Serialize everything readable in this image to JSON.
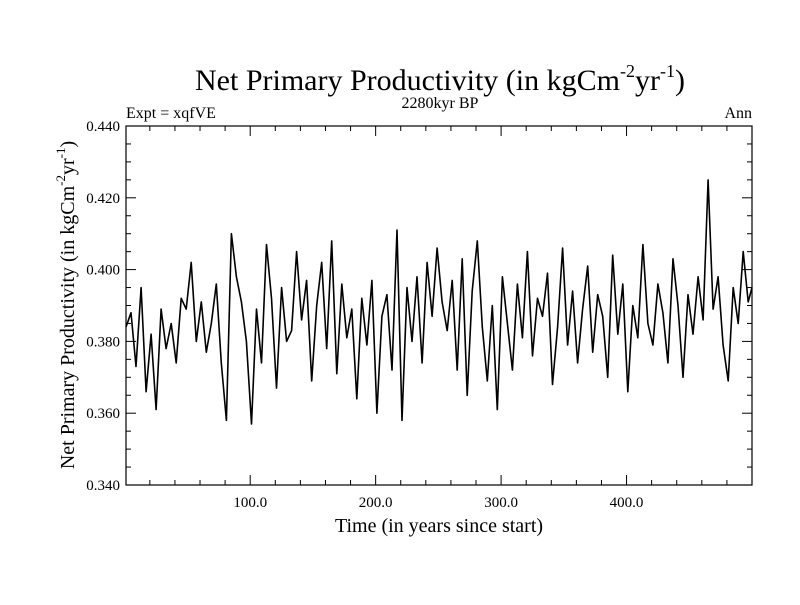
{
  "header": {
    "title_main": "Net Primary Productivity (in kgCm",
    "title_sup1": "-2",
    "title_mid": "yr",
    "title_sup2": "-1",
    "title_end": ")",
    "subtitle": "2280kyr BP",
    "left_label": "Expt = xqfVE",
    "right_label": "Ann"
  },
  "axes": {
    "xlabel": "Time (in years since start)",
    "ylabel_main": "Net Primary Productivity (in kgCm",
    "ylabel_sup1": "-2",
    "ylabel_mid": "yr",
    "ylabel_sup2": "-1",
    "ylabel_end": ")"
  },
  "chart_data": {
    "type": "line",
    "title": "Net Primary Productivity (in kgCm-2yr-1)",
    "xlabel": "Time (in years since start)",
    "ylabel": "Net Primary Productivity (in kgCm-2yr-1)",
    "xlim": [
      1,
      500
    ],
    "ylim": [
      0.34,
      0.44
    ],
    "xticks": [
      100,
      200,
      300,
      400
    ],
    "xtick_labels": [
      "100.0",
      "200.0",
      "300.0",
      "400.0"
    ],
    "yticks": [
      0.34,
      0.36,
      0.38,
      0.4,
      0.42,
      0.44
    ],
    "ytick_labels": [
      "0.340",
      "0.360",
      "0.380",
      "0.400",
      "0.420",
      "0.440"
    ],
    "grid": false,
    "line_color": "#000000",
    "series": [
      {
        "x": [
          1,
          5,
          9,
          13,
          17,
          21,
          25,
          29,
          33,
          37,
          41,
          45,
          49,
          53,
          57,
          61,
          65,
          69,
          73,
          77,
          81,
          85,
          89,
          93,
          97,
          101,
          105,
          109,
          113,
          117,
          121,
          125,
          129,
          133,
          137,
          141,
          145,
          149,
          153,
          157,
          161,
          165,
          169,
          173,
          177,
          181,
          185,
          189,
          193,
          197,
          201,
          205,
          209,
          213,
          217,
          221,
          225,
          229,
          233,
          237,
          241,
          245,
          249,
          253,
          257,
          261,
          265,
          269,
          273,
          277,
          281,
          285,
          289,
          293,
          297,
          301,
          305,
          309,
          313,
          317,
          321,
          325,
          329,
          333,
          337,
          341,
          345,
          349,
          353,
          357,
          361,
          365,
          369,
          373,
          377,
          381,
          385,
          389,
          393,
          397,
          401,
          405,
          409,
          413,
          417,
          421,
          425,
          429,
          433,
          437,
          441,
          445,
          449,
          453,
          457,
          461,
          465,
          469,
          473,
          477,
          481,
          485,
          489,
          493,
          497,
          500
        ],
        "y": [
          0.384,
          0.388,
          0.373,
          0.395,
          0.366,
          0.382,
          0.361,
          0.389,
          0.378,
          0.385,
          0.374,
          0.392,
          0.389,
          0.402,
          0.38,
          0.391,
          0.377,
          0.385,
          0.396,
          0.374,
          0.358,
          0.41,
          0.398,
          0.391,
          0.38,
          0.357,
          0.389,
          0.374,
          0.407,
          0.392,
          0.367,
          0.395,
          0.38,
          0.383,
          0.405,
          0.386,
          0.397,
          0.369,
          0.39,
          0.402,
          0.378,
          0.408,
          0.371,
          0.396,
          0.381,
          0.389,
          0.364,
          0.392,
          0.379,
          0.397,
          0.36,
          0.387,
          0.393,
          0.372,
          0.411,
          0.358,
          0.395,
          0.38,
          0.398,
          0.374,
          0.402,
          0.387,
          0.406,
          0.391,
          0.383,
          0.397,
          0.372,
          0.403,
          0.365,
          0.394,
          0.408,
          0.384,
          0.369,
          0.39,
          0.361,
          0.398,
          0.385,
          0.372,
          0.396,
          0.381,
          0.405,
          0.376,
          0.392,
          0.387,
          0.399,
          0.368,
          0.384,
          0.406,
          0.379,
          0.394,
          0.374,
          0.389,
          0.401,
          0.377,
          0.393,
          0.387,
          0.37,
          0.404,
          0.382,
          0.396,
          0.366,
          0.39,
          0.381,
          0.407,
          0.385,
          0.379,
          0.396,
          0.388,
          0.374,
          0.403,
          0.39,
          0.37,
          0.393,
          0.382,
          0.398,
          0.386,
          0.425,
          0.389,
          0.398,
          0.379,
          0.369,
          0.395,
          0.385,
          0.405,
          0.391,
          0.395
        ]
      }
    ]
  }
}
